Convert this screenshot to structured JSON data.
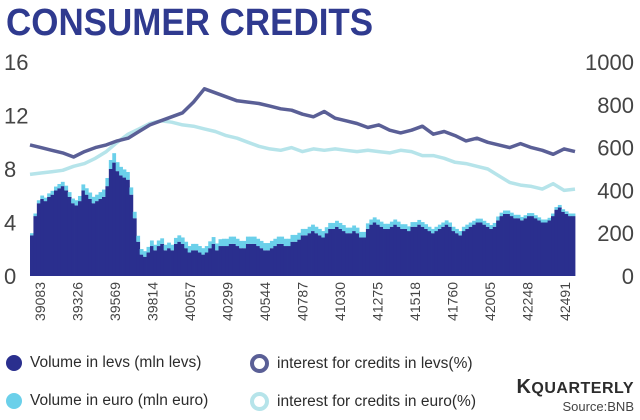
{
  "title": "CONSUMER CREDITS",
  "brand": {
    "k": "K",
    "rest": "QUARTERLY"
  },
  "source": "Source:BNB",
  "colors": {
    "title": "#2f3a8f",
    "levs_bar": "#2a2f8e",
    "euro_bar": "#6bd0ea",
    "levs_line": "#5a5f96",
    "euro_line": "#b6e4ea",
    "axis_text": "#444444"
  },
  "legend": [
    {
      "label": "Volume in levs (mln levs)",
      "shape": "dot",
      "color": "#2a2f8e"
    },
    {
      "label": "interest for credits in levs(%)",
      "shape": "ring",
      "color": "#5a5f96"
    },
    {
      "label": "Volume in euro (mln euro)",
      "shape": "dot",
      "color": "#6bd0ea"
    },
    {
      "label": "interest for credits in euro(%)",
      "shape": "ring",
      "color": "#b6e4ea"
    }
  ],
  "chart_data": {
    "type": "bar",
    "x_ticks": [
      "39083",
      "39326",
      "39569",
      "39814",
      "40057",
      "40299",
      "40544",
      "40787",
      "41030",
      "41275",
      "41518",
      "41760",
      "42005",
      "42248",
      "42491"
    ],
    "y_left_ticks": [
      "0",
      "4",
      "8",
      "12",
      "16"
    ],
    "y_right_ticks": [
      "0",
      "200",
      "400",
      "600",
      "800",
      "1000"
    ],
    "ylim_left": [
      0,
      16
    ],
    "ylim_right": [
      0,
      1000
    ],
    "grid": false,
    "series": [
      {
        "name": "Volume in levs (mln levs)",
        "type": "bar",
        "axis": "right",
        "values": [
          190,
          280,
          340,
          360,
          350,
          370,
          380,
          400,
          410,
          420,
          400,
          370,
          340,
          330,
          350,
          400,
          380,
          360,
          340,
          350,
          360,
          370,
          420,
          500,
          530,
          490,
          470,
          460,
          450,
          380,
          270,
          160,
          100,
          90,
          110,
          140,
          120,
          140,
          150,
          120,
          130,
          120,
          150,
          160,
          150,
          130,
          110,
          120,
          120,
          110,
          100,
          110,
          130,
          150,
          120,
          140,
          140,
          140,
          150,
          150,
          140,
          130,
          130,
          150,
          150,
          150,
          140,
          130,
          120,
          120,
          130,
          140,
          150,
          150,
          140,
          140,
          160,
          160,
          170,
          190,
          190,
          200,
          210,
          200,
          190,
          180,
          200,
          220,
          220,
          230,
          220,
          210,
          200,
          200,
          210,
          200,
          180,
          180,
          220,
          240,
          250,
          240,
          230,
          220,
          220,
          230,
          240,
          230,
          220,
          220,
          210,
          230,
          230,
          240,
          230,
          220,
          210,
          200,
          210,
          220,
          230,
          240,
          230,
          210,
          200,
          190,
          210,
          220,
          230,
          240,
          250,
          250,
          240,
          230,
          220,
          230,
          260,
          280,
          290,
          290,
          280,
          270,
          270,
          260,
          270,
          280,
          280,
          270,
          260,
          250,
          250,
          260,
          280,
          310,
          320,
          300,
          290,
          280,
          280
        ]
      },
      {
        "name": "Volume in euro (mln euro)",
        "type": "bar",
        "axis": "right",
        "stacked": true,
        "values": [
          10,
          12,
          14,
          16,
          16,
          16,
          18,
          18,
          20,
          20,
          22,
          22,
          22,
          24,
          24,
          28,
          30,
          30,
          30,
          30,
          32,
          34,
          38,
          42,
          44,
          42,
          40,
          38,
          36,
          34,
          30,
          28,
          26,
          26,
          26,
          26,
          26,
          26,
          26,
          26,
          26,
          26,
          28,
          30,
          30,
          30,
          30,
          30,
          30,
          30,
          30,
          30,
          32,
          32,
          32,
          32,
          34,
          34,
          34,
          34,
          34,
          34,
          34,
          34,
          34,
          34,
          34,
          34,
          34,
          34,
          34,
          34,
          34,
          34,
          34,
          34,
          32,
          32,
          32,
          30,
          30,
          30,
          30,
          30,
          30,
          30,
          28,
          28,
          28,
          28,
          28,
          28,
          26,
          26,
          26,
          26,
          26,
          26,
          26,
          24,
          24,
          24,
          24,
          24,
          24,
          24,
          24,
          24,
          22,
          22,
          22,
          22,
          22,
          22,
          22,
          22,
          20,
          20,
          20,
          20,
          20,
          20,
          20,
          20,
          20,
          20,
          20,
          20,
          20,
          18,
          18,
          18,
          18,
          18,
          18,
          18,
          18,
          16,
          16,
          16,
          16,
          16,
          16,
          16,
          14,
          14,
          14,
          14,
          14,
          14,
          14,
          12,
          12,
          12,
          12,
          12,
          12,
          12,
          12
        ]
      },
      {
        "name": "interest for credits in levs(%)",
        "type": "line",
        "axis": "left",
        "values": [
          9.8,
          9.6,
          9.4,
          9.2,
          8.9,
          9.3,
          9.6,
          9.8,
          10.1,
          10.3,
          10.8,
          11.3,
          11.6,
          11.9,
          12.2,
          13.0,
          14.0,
          13.7,
          13.4,
          13.1,
          13.0,
          12.9,
          12.7,
          12.5,
          12.4,
          12.1,
          11.9,
          12.3,
          11.8,
          11.6,
          11.4,
          11.1,
          11.3,
          10.9,
          10.7,
          10.9,
          11.2,
          10.6,
          10.8,
          10.5,
          10.1,
          10.3,
          10.0,
          9.8,
          9.6,
          9.9,
          9.6,
          9.4,
          9.1,
          9.5,
          9.3
        ],
        "dates_note": ""
      },
      {
        "name": "interest for credits in euro(%)",
        "type": "line",
        "axis": "left",
        "values": [
          7.6,
          7.7,
          7.8,
          7.9,
          8.2,
          8.4,
          8.8,
          9.3,
          10.0,
          10.6,
          11.0,
          11.4,
          11.6,
          11.5,
          11.3,
          11.2,
          11.0,
          10.8,
          10.5,
          10.3,
          10.0,
          9.7,
          9.5,
          9.4,
          9.6,
          9.3,
          9.5,
          9.4,
          9.5,
          9.4,
          9.3,
          9.4,
          9.3,
          9.2,
          9.4,
          9.3,
          9.0,
          9.0,
          8.8,
          8.5,
          8.4,
          8.2,
          8.0,
          7.5,
          7.0,
          6.8,
          6.7,
          6.5,
          6.9,
          6.4,
          6.5
        ]
      }
    ]
  }
}
